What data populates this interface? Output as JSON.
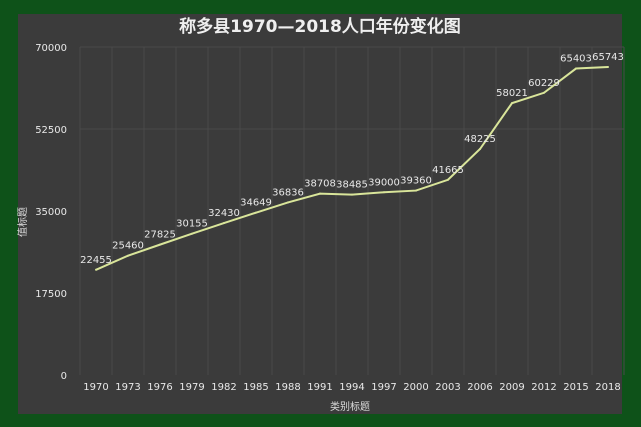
{
  "chart_data": {
    "type": "line",
    "title": "称多县1970—2018人口年份变化图",
    "xlabel": "类别标题",
    "ylabel": "值标题",
    "ylim": [
      0,
      70000
    ],
    "yticks": [
      0,
      17500,
      35000,
      52500,
      70000
    ],
    "grid": "vertical",
    "categories": [
      "1970",
      "1973",
      "1976",
      "1979",
      "1982",
      "1985",
      "1988",
      "1991",
      "1994",
      "1997",
      "2000",
      "2003",
      "2006",
      "2009",
      "2012",
      "2015",
      "2018"
    ],
    "series": [
      {
        "values": [
          22455,
          25460,
          27825,
          30155,
          32430,
          34649,
          36836,
          38708,
          38485,
          39000,
          39360,
          41665,
          48225,
          58021,
          60229,
          65403,
          65743
        ]
      }
    ],
    "colors": {
      "frame": "#0e5219",
      "panel": "#3b3b3b",
      "line": "#d9e59a",
      "text": "#e8e8e8"
    }
  }
}
